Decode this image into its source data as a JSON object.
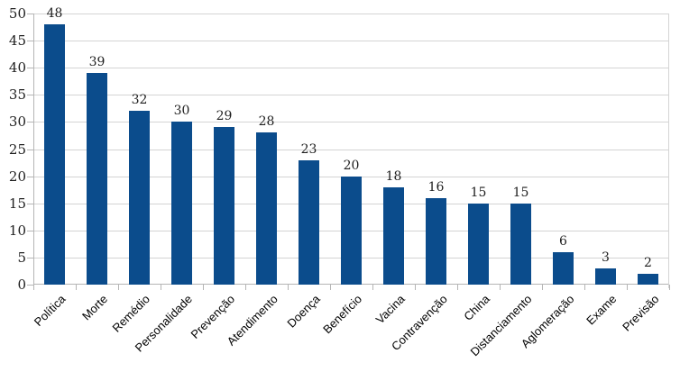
{
  "chart_data": {
    "type": "bar",
    "categories": [
      "Política",
      "Morte",
      "Remédio",
      "Personalidade",
      "Prevenção",
      "Atendimento",
      "Doença",
      "Benefício",
      "Vacina",
      "Contravenção",
      "China",
      "Distanciamento",
      "Aglomeração",
      "Exame",
      "Previsão"
    ],
    "values": [
      48,
      39,
      32,
      30,
      29,
      28,
      23,
      20,
      18,
      16,
      15,
      15,
      6,
      3,
      2
    ],
    "title": "",
    "xlabel": "",
    "ylabel": "",
    "ylim": [
      0,
      50
    ],
    "yticks": [
      0,
      5,
      10,
      15,
      20,
      25,
      30,
      35,
      40,
      45,
      50
    ],
    "grid": true,
    "legend": "none",
    "value_labels_shown": true,
    "x_label_rotation_deg": 45,
    "colors": {
      "bar": "#0B4C8C",
      "gridline": "#D4D4D4",
      "axis": "#B5B5B5",
      "value_label_text": "#1F1F1F",
      "ytick_label_text": "#1F1F1F",
      "category_label_text": "#000000",
      "background": "#FFFFFF"
    }
  }
}
